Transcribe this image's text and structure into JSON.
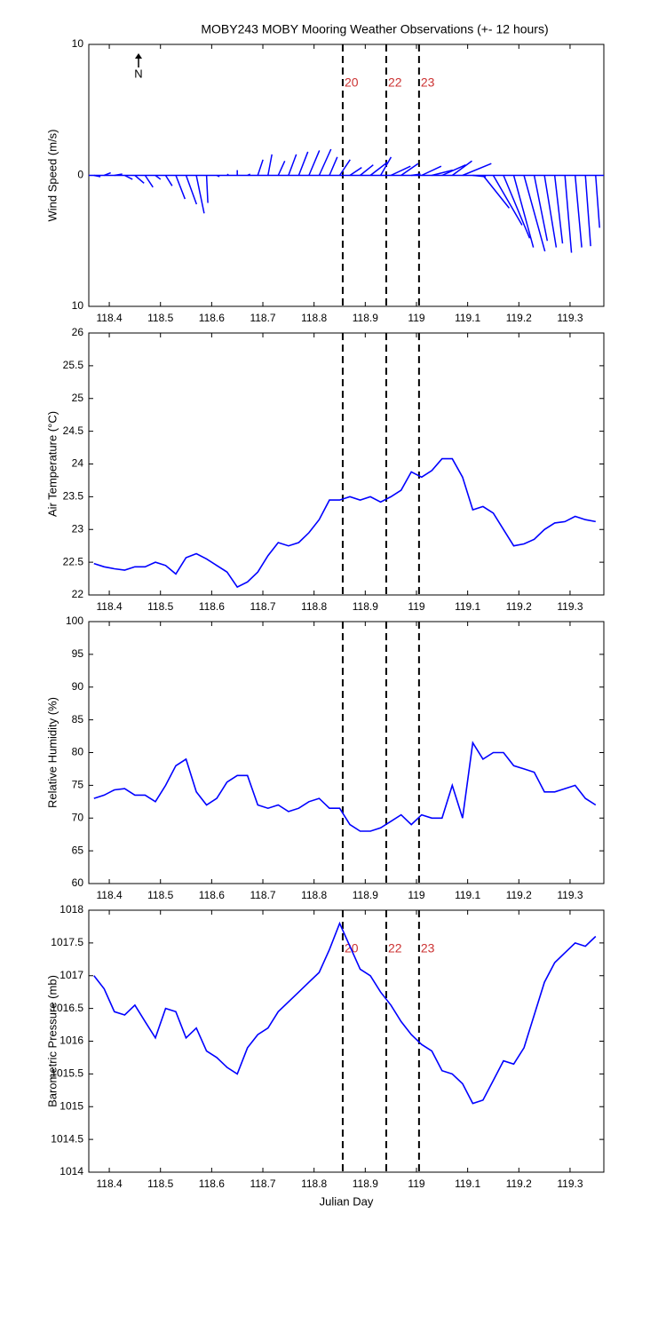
{
  "chart_data": [
    {
      "type": "stick",
      "title": "MOBY243 MOBY Mooring Weather Observations (+- 12 hours)",
      "ylabel": "Wind Speed (m/s)",
      "north_label": "N",
      "color": "#0000ff",
      "xlim": [
        118.36,
        119.366
      ],
      "xticks": [
        118.4,
        118.5,
        118.6,
        118.7,
        118.8,
        118.9,
        119,
        119.1,
        119.2,
        119.3
      ],
      "ylim": [
        -10,
        10
      ],
      "yticks": [
        {
          "value": -10,
          "label": "10"
        },
        0,
        10
      ],
      "event_x": [
        118.856,
        118.941,
        119.005
      ],
      "event_labels": [
        "20",
        "22",
        "23"
      ],
      "x": [
        118.37,
        118.39,
        118.41,
        118.43,
        118.45,
        118.47,
        118.49,
        118.51,
        118.53,
        118.55,
        118.57,
        118.59,
        118.61,
        118.63,
        118.65,
        118.67,
        118.69,
        118.71,
        118.73,
        118.75,
        118.77,
        118.79,
        118.81,
        118.83,
        118.85,
        118.87,
        118.89,
        118.91,
        118.93,
        118.95,
        118.97,
        118.99,
        119.01,
        119.03,
        119.05,
        119.07,
        119.09,
        119.11,
        119.13,
        119.15,
        119.17,
        119.19,
        119.21,
        119.23,
        119.25,
        119.27,
        119.29,
        119.31,
        119.33,
        119.35
      ],
      "u": [
        0.5,
        0.5,
        0.6,
        0.6,
        0.7,
        0.6,
        0.4,
        0.5,
        0.7,
        0.8,
        0.6,
        0.1,
        0.2,
        0.1,
        0,
        0.2,
        0.4,
        0.3,
        0.5,
        0.6,
        0.7,
        0.8,
        0.9,
        0.6,
        0.8,
        0.9,
        1.0,
        1.3,
        0.8,
        1.5,
        1.3,
        0.7,
        1.5,
        1.6,
        1.8,
        1.5,
        2.2,
        1.0,
        2.0,
        2.2,
        2.0,
        1.5,
        1.6,
        1.0,
        0.9,
        0.6,
        0.5,
        0.5,
        0.4,
        0.3
      ],
      "v": [
        -0.1,
        0.2,
        0.1,
        -0.3,
        -0.6,
        -0.9,
        -0.3,
        -0.8,
        -1.8,
        -2.2,
        -2.9,
        -2.1,
        -0.1,
        0.1,
        0.4,
        0.1,
        1.2,
        1.6,
        1.1,
        1.6,
        1.8,
        1.9,
        2.0,
        1.4,
        1.2,
        0.6,
        0.8,
        1.0,
        1.4,
        0.7,
        0.9,
        0.1,
        0.7,
        0.4,
        0.8,
        1.1,
        0.9,
        -0.1,
        -2.5,
        -3.8,
        -4.8,
        -5.5,
        -5.8,
        -5.0,
        -5.5,
        -5.2,
        -5.9,
        -5.5,
        -5.4,
        -4.0
      ]
    },
    {
      "type": "line",
      "ylabel": "Air Temperature (°C)",
      "color": "#0000ff",
      "xlim": [
        118.36,
        119.366
      ],
      "xticks": [
        118.4,
        118.5,
        118.6,
        118.7,
        118.8,
        118.9,
        119,
        119.1,
        119.2,
        119.3
      ],
      "ylim": [
        22,
        26
      ],
      "yticks": [
        22,
        22.5,
        23,
        23.5,
        24,
        24.5,
        25,
        25.5,
        26
      ],
      "event_x": [
        118.856,
        118.941,
        119.005
      ],
      "x": [
        118.37,
        118.39,
        118.41,
        118.43,
        118.45,
        118.47,
        118.49,
        118.51,
        118.53,
        118.55,
        118.57,
        118.59,
        118.61,
        118.63,
        118.65,
        118.67,
        118.69,
        118.71,
        118.73,
        118.75,
        118.77,
        118.79,
        118.81,
        118.83,
        118.85,
        118.87,
        118.89,
        118.91,
        118.93,
        118.95,
        118.97,
        118.99,
        119.01,
        119.03,
        119.05,
        119.07,
        119.09,
        119.11,
        119.13,
        119.15,
        119.17,
        119.19,
        119.21,
        119.23,
        119.25,
        119.27,
        119.29,
        119.31,
        119.33,
        119.35
      ],
      "values": [
        22.48,
        22.43,
        22.4,
        22.38,
        22.43,
        22.43,
        22.5,
        22.45,
        22.32,
        22.57,
        22.63,
        22.55,
        22.45,
        22.35,
        22.12,
        22.2,
        22.35,
        22.6,
        22.8,
        22.75,
        22.8,
        22.95,
        23.15,
        23.45,
        23.45,
        23.5,
        23.45,
        23.5,
        23.42,
        23.5,
        23.6,
        23.88,
        23.8,
        23.9,
        24.08,
        24.08,
        23.8,
        23.3,
        23.35,
        23.25,
        23.0,
        22.75,
        22.78,
        22.85,
        23.0,
        23.1,
        23.12,
        23.2,
        23.15,
        23.12
      ]
    },
    {
      "type": "line",
      "ylabel": "Relative Humidity (%)",
      "color": "#0000ff",
      "xlim": [
        118.36,
        119.366
      ],
      "xticks": [
        118.4,
        118.5,
        118.6,
        118.7,
        118.8,
        118.9,
        119,
        119.1,
        119.2,
        119.3
      ],
      "ylim": [
        60,
        100
      ],
      "yticks": [
        60,
        65,
        70,
        75,
        80,
        85,
        90,
        95,
        100
      ],
      "event_x": [
        118.856,
        118.941,
        119.005
      ],
      "x": [
        118.37,
        118.39,
        118.41,
        118.43,
        118.45,
        118.47,
        118.49,
        118.51,
        118.53,
        118.55,
        118.57,
        118.59,
        118.61,
        118.63,
        118.65,
        118.67,
        118.69,
        118.71,
        118.73,
        118.75,
        118.77,
        118.79,
        118.81,
        118.83,
        118.85,
        118.87,
        118.89,
        118.91,
        118.93,
        118.95,
        118.97,
        118.99,
        119.01,
        119.03,
        119.05,
        119.07,
        119.09,
        119.11,
        119.13,
        119.15,
        119.17,
        119.19,
        119.21,
        119.23,
        119.25,
        119.27,
        119.29,
        119.31,
        119.33,
        119.35
      ],
      "values": [
        73,
        73.5,
        74.3,
        74.5,
        73.5,
        73.5,
        72.5,
        75,
        78,
        79,
        74,
        72,
        73,
        75.5,
        76.5,
        76.5,
        72,
        71.5,
        72,
        71,
        71.5,
        72.5,
        73,
        71.5,
        71.5,
        69,
        68,
        68,
        68.5,
        69.5,
        70.5,
        69,
        70.5,
        70,
        70,
        75,
        70,
        81.5,
        79,
        80,
        80,
        78,
        77.5,
        77,
        74,
        74,
        74.5,
        75,
        73,
        72
      ]
    },
    {
      "type": "line",
      "ylabel": "Barometric Pressure (mb)",
      "xlabel": "Julian Day",
      "color": "#0000ff",
      "xlim": [
        118.36,
        119.366
      ],
      "xticks": [
        118.4,
        118.5,
        118.6,
        118.7,
        118.8,
        118.9,
        119,
        119.1,
        119.2,
        119.3
      ],
      "ylim": [
        1014,
        1018
      ],
      "yticks": [
        1014,
        1014.5,
        1015,
        1015.5,
        1016,
        1016.5,
        1017,
        1017.5,
        1018
      ],
      "event_x": [
        118.856,
        118.941,
        119.005
      ],
      "event_labels": [
        "20",
        "22",
        "23"
      ],
      "x": [
        118.37,
        118.39,
        118.41,
        118.43,
        118.45,
        118.47,
        118.49,
        118.51,
        118.53,
        118.55,
        118.57,
        118.59,
        118.61,
        118.63,
        118.65,
        118.67,
        118.69,
        118.71,
        118.73,
        118.75,
        118.77,
        118.79,
        118.81,
        118.83,
        118.85,
        118.87,
        118.89,
        118.91,
        118.93,
        118.95,
        118.97,
        118.99,
        119.01,
        119.03,
        119.05,
        119.07,
        119.09,
        119.11,
        119.13,
        119.15,
        119.17,
        119.19,
        119.21,
        119.23,
        119.25,
        119.27,
        119.29,
        119.31,
        119.33,
        119.35
      ],
      "values": [
        1017.0,
        1016.8,
        1016.45,
        1016.4,
        1016.55,
        1016.3,
        1016.05,
        1016.5,
        1016.45,
        1016.05,
        1016.2,
        1015.85,
        1015.75,
        1015.6,
        1015.5,
        1015.9,
        1016.1,
        1016.2,
        1016.45,
        1016.6,
        1016.75,
        1016.9,
        1017.05,
        1017.4,
        1017.8,
        1017.45,
        1017.1,
        1017.0,
        1016.75,
        1016.55,
        1016.3,
        1016.1,
        1015.95,
        1015.85,
        1015.55,
        1015.5,
        1015.35,
        1015.05,
        1015.1,
        1015.4,
        1015.7,
        1015.65,
        1015.9,
        1016.4,
        1016.9,
        1017.2,
        1017.35,
        1017.5,
        1017.45,
        1017.6
      ]
    }
  ]
}
